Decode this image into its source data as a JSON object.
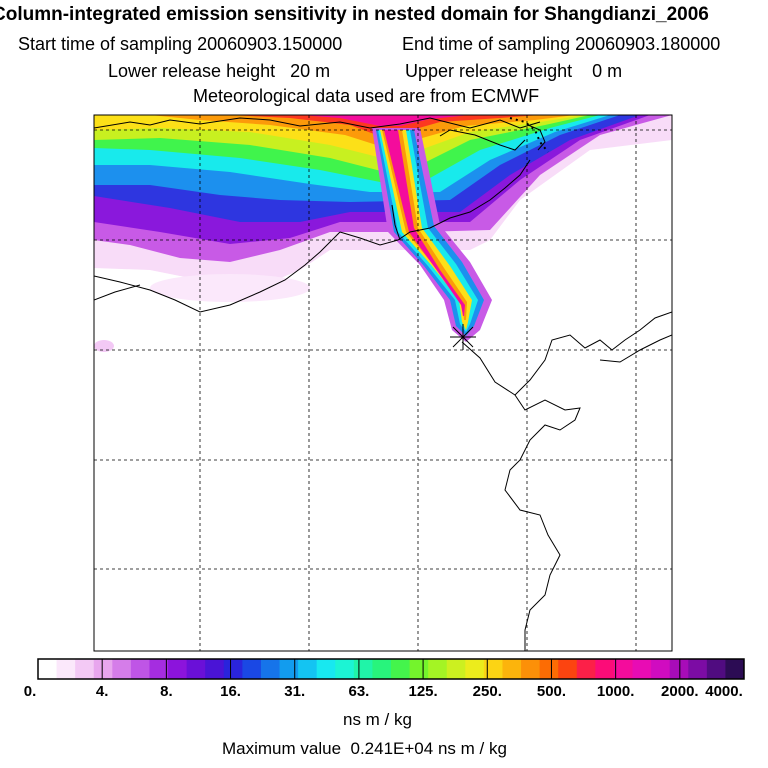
{
  "header": {
    "title": "Column-integrated emission sensitivity in nested domain for Shangdianzi_2006",
    "start_label": "Start time of sampling",
    "start_value": "20060903.150000",
    "end_label": "End time of sampling",
    "end_value": "20060903.180000",
    "lower_label": "Lower release height",
    "lower_value": "20 m",
    "upper_label": "Upper release height",
    "upper_value": "0 m",
    "met": "Meteorological data used are from ECMWF"
  },
  "colorbar": {
    "ticks": [
      "0.",
      "4.",
      "8.",
      "16.",
      "31.",
      "63.",
      "125.",
      "250.",
      "500.",
      "1000.",
      "2000.",
      "4000."
    ],
    "colors": [
      "#ffffff",
      "#fbe8fb",
      "#f3c9f5",
      "#e8a6ee",
      "#d57de9",
      "#bf55e6",
      "#a52de0",
      "#8c14dc",
      "#6a10d8",
      "#4a14d6",
      "#2a24dc",
      "#1a48e4",
      "#1674ea",
      "#129cee",
      "#14c4f2",
      "#18e8f0",
      "#1cf4d4",
      "#20f4a8",
      "#28f47c",
      "#44f44c",
      "#74f42c",
      "#a4f424",
      "#ccf020",
      "#ecec1c",
      "#fcd414",
      "#fcb40c",
      "#fc9008",
      "#fc6c04",
      "#fc4410",
      "#fc2048",
      "#fc0c78",
      "#f40c9c",
      "#e80cb4",
      "#d00cc0",
      "#a80cb8",
      "#7c0ca4",
      "#500c80",
      "#2c0c54"
    ],
    "unit": "ns m / kg",
    "max_label": "Maximum value",
    "max_value": "0.241E+04",
    "max_unit": "ns m / kg"
  },
  "map": {
    "receptor_marker": "star-icon",
    "grid": "dashed"
  }
}
